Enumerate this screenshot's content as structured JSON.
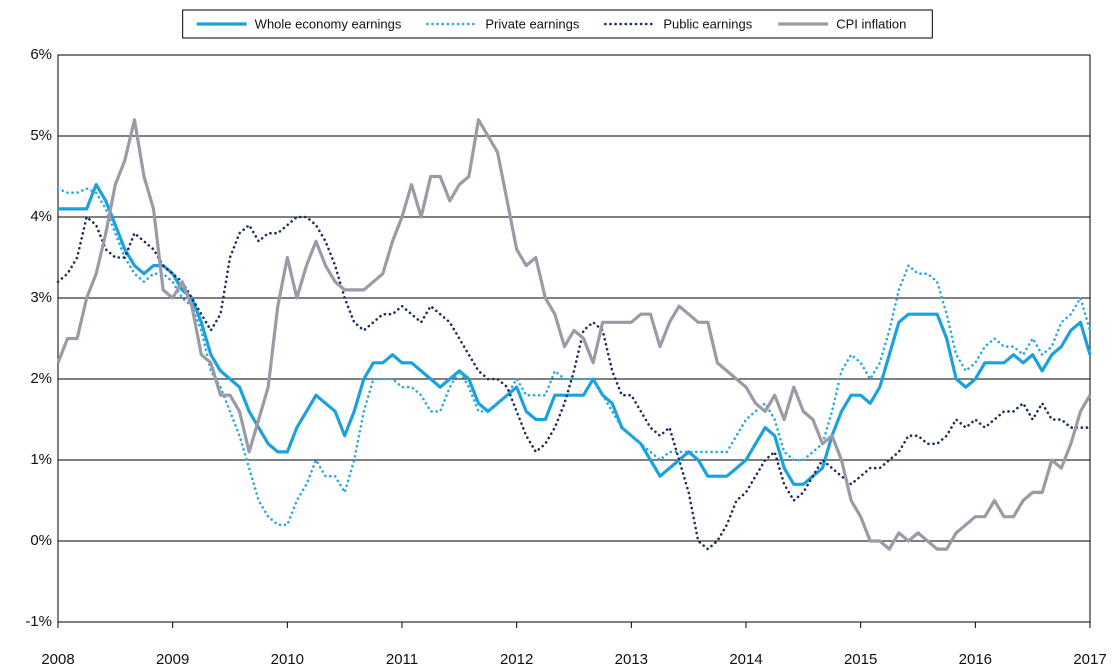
{
  "chart_data": {
    "type": "line",
    "x": [
      2008,
      2008.083,
      2008.167,
      2008.25,
      2008.333,
      2008.417,
      2008.5,
      2008.583,
      2008.667,
      2008.75,
      2008.833,
      2008.917,
      2009,
      2009.083,
      2009.167,
      2009.25,
      2009.333,
      2009.417,
      2009.5,
      2009.583,
      2009.667,
      2009.75,
      2009.833,
      2009.917,
      2010,
      2010.083,
      2010.167,
      2010.25,
      2010.333,
      2010.417,
      2010.5,
      2010.583,
      2010.667,
      2010.75,
      2010.833,
      2010.917,
      2011,
      2011.083,
      2011.167,
      2011.25,
      2011.333,
      2011.417,
      2011.5,
      2011.583,
      2011.667,
      2011.75,
      2011.833,
      2011.917,
      2012,
      2012.083,
      2012.167,
      2012.25,
      2012.333,
      2012.417,
      2012.5,
      2012.583,
      2012.667,
      2012.75,
      2012.833,
      2012.917,
      2013,
      2013.083,
      2013.167,
      2013.25,
      2013.333,
      2013.417,
      2013.5,
      2013.583,
      2013.667,
      2013.75,
      2013.833,
      2013.917,
      2014,
      2014.083,
      2014.167,
      2014.25,
      2014.333,
      2014.417,
      2014.5,
      2014.583,
      2014.667,
      2014.75,
      2014.833,
      2014.917,
      2015,
      2015.083,
      2015.167,
      2015.25,
      2015.333,
      2015.417,
      2015.5,
      2015.583,
      2015.667,
      2015.75,
      2015.833,
      2015.917,
      2016,
      2016.083,
      2016.167,
      2016.25,
      2016.333,
      2016.417,
      2016.5,
      2016.583,
      2016.667,
      2016.75,
      2016.833,
      2016.917,
      2017
    ],
    "series": [
      {
        "name": "Whole economy earnings",
        "color": "#1ba1dc",
        "style": "solid",
        "values": [
          4.1,
          4.1,
          4.1,
          4.1,
          4.4,
          4.2,
          3.9,
          3.6,
          3.4,
          3.3,
          3.4,
          3.4,
          3.3,
          3.1,
          3.0,
          2.7,
          2.3,
          2.1,
          2.0,
          1.9,
          1.6,
          1.4,
          1.2,
          1.1,
          1.1,
          1.4,
          1.6,
          1.8,
          1.7,
          1.6,
          1.3,
          1.6,
          2.0,
          2.2,
          2.2,
          2.3,
          2.2,
          2.2,
          2.1,
          2.0,
          1.9,
          2.0,
          2.1,
          2.0,
          1.7,
          1.6,
          1.7,
          1.8,
          1.9,
          1.6,
          1.5,
          1.5,
          1.8,
          1.8,
          1.8,
          1.8,
          2.0,
          1.8,
          1.7,
          1.4,
          1.3,
          1.2,
          1.0,
          0.8,
          0.9,
          1.0,
          1.1,
          1.0,
          0.8,
          0.8,
          0.8,
          0.9,
          1.0,
          1.2,
          1.4,
          1.3,
          0.9,
          0.7,
          0.7,
          0.8,
          0.9,
          1.3,
          1.6,
          1.8,
          1.8,
          1.7,
          1.9,
          2.3,
          2.7,
          2.8,
          2.8,
          2.8,
          2.8,
          2.5,
          2.0,
          1.9,
          2.0,
          2.2,
          2.2,
          2.2,
          2.3,
          2.2,
          2.3,
          2.1,
          2.3,
          2.4,
          2.6,
          2.7,
          2.3
        ]
      },
      {
        "name": "Private earnings",
        "color": "#29a9e0",
        "style": "dotted",
        "values": [
          4.35,
          4.3,
          4.3,
          4.35,
          4.3,
          4.1,
          3.8,
          3.5,
          3.3,
          3.2,
          3.3,
          3.3,
          3.2,
          3.0,
          2.9,
          2.6,
          2.1,
          1.9,
          1.6,
          1.3,
          0.9,
          0.5,
          0.3,
          0.2,
          0.2,
          0.5,
          0.7,
          1.0,
          0.8,
          0.8,
          0.6,
          1.0,
          1.6,
          2.0,
          2.0,
          2.0,
          1.9,
          1.9,
          1.8,
          1.6,
          1.6,
          1.9,
          2.1,
          1.9,
          1.6,
          1.6,
          1.7,
          1.8,
          2.0,
          1.8,
          1.8,
          1.8,
          2.1,
          2.0,
          2.0,
          2.0,
          2.0,
          1.8,
          1.6,
          1.4,
          1.3,
          1.2,
          1.1,
          1.0,
          1.1,
          1.1,
          1.1,
          1.1,
          1.1,
          1.1,
          1.1,
          1.3,
          1.5,
          1.6,
          1.7,
          1.5,
          1.1,
          1.0,
          1.0,
          1.1,
          1.2,
          1.6,
          2.1,
          2.3,
          2.2,
          2.0,
          2.2,
          2.6,
          3.1,
          3.4,
          3.3,
          3.3,
          3.2,
          2.8,
          2.3,
          2.1,
          2.2,
          2.4,
          2.5,
          2.4,
          2.4,
          2.3,
          2.5,
          2.3,
          2.4,
          2.7,
          2.8,
          3.0,
          2.6
        ]
      },
      {
        "name": "Public earnings",
        "color": "#1b2f5b",
        "style": "dotted",
        "values": [
          3.2,
          3.3,
          3.5,
          4.0,
          3.9,
          3.6,
          3.5,
          3.5,
          3.8,
          3.7,
          3.6,
          3.4,
          3.3,
          3.2,
          3.0,
          2.8,
          2.6,
          2.8,
          3.5,
          3.8,
          3.9,
          3.7,
          3.8,
          3.8,
          3.9,
          4.0,
          4.0,
          3.9,
          3.7,
          3.4,
          3.0,
          2.7,
          2.6,
          2.7,
          2.8,
          2.8,
          2.9,
          2.8,
          2.7,
          2.9,
          2.8,
          2.7,
          2.5,
          2.3,
          2.1,
          2.0,
          2.0,
          1.9,
          1.6,
          1.3,
          1.1,
          1.2,
          1.4,
          1.7,
          2.1,
          2.6,
          2.7,
          2.6,
          2.1,
          1.8,
          1.8,
          1.6,
          1.4,
          1.3,
          1.4,
          1.0,
          0.6,
          0.0,
          -0.1,
          0.0,
          0.2,
          0.5,
          0.6,
          0.8,
          1.0,
          1.1,
          0.7,
          0.5,
          0.6,
          0.8,
          1.0,
          0.9,
          0.8,
          0.7,
          0.8,
          0.9,
          0.9,
          1.0,
          1.1,
          1.3,
          1.3,
          1.2,
          1.2,
          1.3,
          1.5,
          1.4,
          1.5,
          1.4,
          1.5,
          1.6,
          1.6,
          1.7,
          1.5,
          1.7,
          1.5,
          1.5,
          1.4,
          1.4,
          1.4
        ]
      },
      {
        "name": "CPI inflation",
        "color": "#9a9ba6",
        "style": "solid",
        "values": [
          2.2,
          2.5,
          2.5,
          3.0,
          3.3,
          3.8,
          4.4,
          4.7,
          5.2,
          4.5,
          4.1,
          3.1,
          3.0,
          3.2,
          2.9,
          2.3,
          2.2,
          1.8,
          1.8,
          1.6,
          1.1,
          1.5,
          1.9,
          2.9,
          3.5,
          3.0,
          3.4,
          3.7,
          3.4,
          3.2,
          3.1,
          3.1,
          3.1,
          3.2,
          3.3,
          3.7,
          4.0,
          4.4,
          4.0,
          4.5,
          4.5,
          4.2,
          4.4,
          4.5,
          5.2,
          5.0,
          4.8,
          4.2,
          3.6,
          3.4,
          3.5,
          3.0,
          2.8,
          2.4,
          2.6,
          2.5,
          2.2,
          2.7,
          2.7,
          2.7,
          2.7,
          2.8,
          2.8,
          2.4,
          2.7,
          2.9,
          2.8,
          2.7,
          2.7,
          2.2,
          2.1,
          2.0,
          1.9,
          1.7,
          1.6,
          1.8,
          1.5,
          1.9,
          1.6,
          1.5,
          1.2,
          1.3,
          1.0,
          0.5,
          0.3,
          0.0,
          0.0,
          -0.1,
          0.1,
          0.0,
          0.1,
          0.0,
          -0.1,
          -0.1,
          0.1,
          0.2,
          0.3,
          0.3,
          0.5,
          0.3,
          0.3,
          0.5,
          0.6,
          0.6,
          1.0,
          0.9,
          1.2,
          1.6,
          1.8
        ]
      }
    ],
    "xlim": [
      2008,
      2017
    ],
    "xticks": [
      2008,
      2009,
      2010,
      2011,
      2012,
      2013,
      2014,
      2015,
      2016,
      2017
    ],
    "ylim": [
      -1,
      6
    ],
    "yticks": [
      {
        "value": -1,
        "label": "-1%"
      },
      {
        "value": 0,
        "label": "0%"
      },
      {
        "value": 1,
        "label": "1%"
      },
      {
        "value": 2,
        "label": "2%"
      },
      {
        "value": 3,
        "label": "3%"
      },
      {
        "value": 4,
        "label": "4%"
      },
      {
        "value": 5,
        "label": "5%"
      },
      {
        "value": 6,
        "label": "6%"
      }
    ],
    "grid": true,
    "legend": "top"
  }
}
